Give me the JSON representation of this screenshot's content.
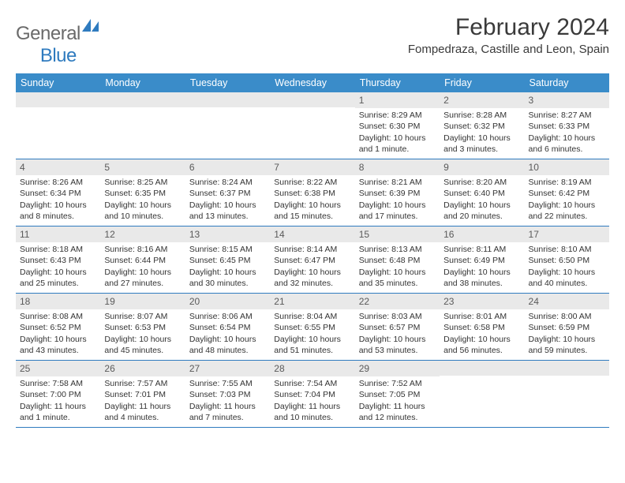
{
  "brand": {
    "word1": "General",
    "word2": "Blue"
  },
  "title": "February 2024",
  "location": "Fompedraza, Castille and Leon, Spain",
  "colors": {
    "header_bg": "#3a8cc9",
    "border": "#2f7bbf",
    "daynum_bg": "#e9e9e9",
    "text": "#333333",
    "logo_gray": "#6a6a6a",
    "logo_blue": "#2f7bbf"
  },
  "weekdays": [
    "Sunday",
    "Monday",
    "Tuesday",
    "Wednesday",
    "Thursday",
    "Friday",
    "Saturday"
  ],
  "weeks": [
    [
      null,
      null,
      null,
      null,
      {
        "n": "1",
        "sr": "8:29 AM",
        "ss": "6:30 PM",
        "dl": "10 hours and 1 minute."
      },
      {
        "n": "2",
        "sr": "8:28 AM",
        "ss": "6:32 PM",
        "dl": "10 hours and 3 minutes."
      },
      {
        "n": "3",
        "sr": "8:27 AM",
        "ss": "6:33 PM",
        "dl": "10 hours and 6 minutes."
      }
    ],
    [
      {
        "n": "4",
        "sr": "8:26 AM",
        "ss": "6:34 PM",
        "dl": "10 hours and 8 minutes."
      },
      {
        "n": "5",
        "sr": "8:25 AM",
        "ss": "6:35 PM",
        "dl": "10 hours and 10 minutes."
      },
      {
        "n": "6",
        "sr": "8:24 AM",
        "ss": "6:37 PM",
        "dl": "10 hours and 13 minutes."
      },
      {
        "n": "7",
        "sr": "8:22 AM",
        "ss": "6:38 PM",
        "dl": "10 hours and 15 minutes."
      },
      {
        "n": "8",
        "sr": "8:21 AM",
        "ss": "6:39 PM",
        "dl": "10 hours and 17 minutes."
      },
      {
        "n": "9",
        "sr": "8:20 AM",
        "ss": "6:40 PM",
        "dl": "10 hours and 20 minutes."
      },
      {
        "n": "10",
        "sr": "8:19 AM",
        "ss": "6:42 PM",
        "dl": "10 hours and 22 minutes."
      }
    ],
    [
      {
        "n": "11",
        "sr": "8:18 AM",
        "ss": "6:43 PM",
        "dl": "10 hours and 25 minutes."
      },
      {
        "n": "12",
        "sr": "8:16 AM",
        "ss": "6:44 PM",
        "dl": "10 hours and 27 minutes."
      },
      {
        "n": "13",
        "sr": "8:15 AM",
        "ss": "6:45 PM",
        "dl": "10 hours and 30 minutes."
      },
      {
        "n": "14",
        "sr": "8:14 AM",
        "ss": "6:47 PM",
        "dl": "10 hours and 32 minutes."
      },
      {
        "n": "15",
        "sr": "8:13 AM",
        "ss": "6:48 PM",
        "dl": "10 hours and 35 minutes."
      },
      {
        "n": "16",
        "sr": "8:11 AM",
        "ss": "6:49 PM",
        "dl": "10 hours and 38 minutes."
      },
      {
        "n": "17",
        "sr": "8:10 AM",
        "ss": "6:50 PM",
        "dl": "10 hours and 40 minutes."
      }
    ],
    [
      {
        "n": "18",
        "sr": "8:08 AM",
        "ss": "6:52 PM",
        "dl": "10 hours and 43 minutes."
      },
      {
        "n": "19",
        "sr": "8:07 AM",
        "ss": "6:53 PM",
        "dl": "10 hours and 45 minutes."
      },
      {
        "n": "20",
        "sr": "8:06 AM",
        "ss": "6:54 PM",
        "dl": "10 hours and 48 minutes."
      },
      {
        "n": "21",
        "sr": "8:04 AM",
        "ss": "6:55 PM",
        "dl": "10 hours and 51 minutes."
      },
      {
        "n": "22",
        "sr": "8:03 AM",
        "ss": "6:57 PM",
        "dl": "10 hours and 53 minutes."
      },
      {
        "n": "23",
        "sr": "8:01 AM",
        "ss": "6:58 PM",
        "dl": "10 hours and 56 minutes."
      },
      {
        "n": "24",
        "sr": "8:00 AM",
        "ss": "6:59 PM",
        "dl": "10 hours and 59 minutes."
      }
    ],
    [
      {
        "n": "25",
        "sr": "7:58 AM",
        "ss": "7:00 PM",
        "dl": "11 hours and 1 minute."
      },
      {
        "n": "26",
        "sr": "7:57 AM",
        "ss": "7:01 PM",
        "dl": "11 hours and 4 minutes."
      },
      {
        "n": "27",
        "sr": "7:55 AM",
        "ss": "7:03 PM",
        "dl": "11 hours and 7 minutes."
      },
      {
        "n": "28",
        "sr": "7:54 AM",
        "ss": "7:04 PM",
        "dl": "11 hours and 10 minutes."
      },
      {
        "n": "29",
        "sr": "7:52 AM",
        "ss": "7:05 PM",
        "dl": "11 hours and 12 minutes."
      },
      null,
      null
    ]
  ],
  "labels": {
    "sunrise": "Sunrise:",
    "sunset": "Sunset:",
    "daylight": "Daylight:"
  }
}
